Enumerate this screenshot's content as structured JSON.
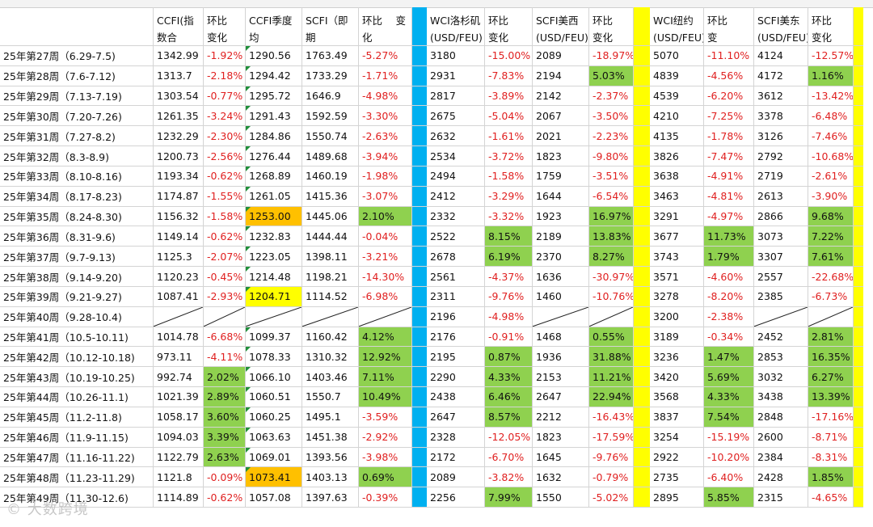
{
  "headers": [
    "",
    "CCFI(指数合\n长协)",
    "环比\n变化",
    "CCFI季度均\n值",
    "SCFI（即期\n指数)",
    "环比　 变\n化",
    "",
    "WCI洛杉矶\n(USD/FEU)",
    "环比\n变化",
    "SCFI美西\n(USD/FEU)",
    "环比\n变化",
    "",
    "WCI纽约\n(USD/FEU)",
    "环比　 变\n化",
    "SCFI美东\n(USD/FEU)",
    "环比\n变化",
    ""
  ],
  "rows": [
    [
      "25年第27周（6.29-7.5)",
      "1342.99",
      "-1.92%",
      "1290.56",
      "1763.49",
      "-5.27%",
      "",
      "3180",
      "-15.00%",
      "2089",
      "-18.97%",
      "",
      "5070",
      "-11.10%",
      "4124",
      "-12.57%",
      ""
    ],
    [
      "25年第28周（7.6-7.12)",
      "1313.7",
      "-2.18%",
      "1294.42",
      "1733.29",
      "-1.71%",
      "",
      "2931",
      "-7.83%",
      "2194",
      "5.03%",
      "",
      "4839",
      "-4.56%",
      "4172",
      "1.16%",
      ""
    ],
    [
      "25年第29周（7.13-7.19)",
      "1303.54",
      "-0.77%",
      "1295.72",
      "1646.9",
      "-4.98%",
      "",
      "2817",
      "-3.89%",
      "2142",
      "-2.37%",
      "",
      "4539",
      "-6.20%",
      "3612",
      "-13.42%",
      ""
    ],
    [
      "25年第30周（7.20-7.26)",
      "1261.35",
      "-3.24%",
      "1291.43",
      "1592.59",
      "-3.30%",
      "",
      "2675",
      "-5.04%",
      "2067",
      "-3.50%",
      "",
      "4210",
      "-7.25%",
      "3378",
      "-6.48%",
      ""
    ],
    [
      "25年第31周（7.27-8.2)",
      "1232.29",
      "-2.30%",
      "1284.86",
      "1550.74",
      "-2.63%",
      "",
      "2632",
      "-1.61%",
      "2021",
      "-2.23%",
      "",
      "4135",
      "-1.78%",
      "3126",
      "-7.46%",
      ""
    ],
    [
      "25年第32周（8.3-8.9)",
      "1200.73",
      "-2.56%",
      "1276.44",
      "1489.68",
      "-3.94%",
      "",
      "2534",
      "-3.72%",
      "1823",
      "-9.80%",
      "",
      "3826",
      "-7.47%",
      "2792",
      "-10.68%",
      ""
    ],
    [
      "25年第33周（8.10-8.16)",
      "1193.34",
      "-0.62%",
      "1268.89",
      "1460.19",
      "-1.98%",
      "",
      "2494",
      "-1.58%",
      "1759",
      "-3.51%",
      "",
      "3638",
      "-4.91%",
      "2719",
      "-2.61%",
      ""
    ],
    [
      "25年第34周（8.17-8.23)",
      "1174.87",
      "-1.55%",
      "1261.05",
      "1415.36",
      "-3.07%",
      "",
      "2412",
      "-3.29%",
      "1644",
      "-6.54%",
      "",
      "3463",
      "-4.81%",
      "2613",
      "-3.90%",
      ""
    ],
    [
      "25年第35周（8.24-8.30)",
      "1156.32",
      "-1.58%",
      "1253.00",
      "1445.06",
      "2.10%",
      "",
      "2332",
      "-3.32%",
      "1923",
      "16.97%",
      "",
      "3291",
      "-4.97%",
      "2866",
      "9.68%",
      ""
    ],
    [
      "25年第36周（8.31-9.6)",
      "1149.14",
      "-0.62%",
      "1232.83",
      "1444.44",
      "-0.04%",
      "",
      "2522",
      "8.15%",
      "2189",
      "13.83%",
      "",
      "3677",
      "11.73%",
      "3073",
      "7.22%",
      ""
    ],
    [
      "25年第37周（9.7-9.13)",
      "1125.3",
      "-2.07%",
      "1223.05",
      "1398.11",
      "-3.21%",
      "",
      "2678",
      "6.19%",
      "2370",
      "8.27%",
      "",
      "3743",
      "1.79%",
      "3307",
      "7.61%",
      ""
    ],
    [
      "25年第38周（9.14-9.20)",
      "1120.23",
      "-0.45%",
      "1214.48",
      "1198.21",
      "-14.30%",
      "",
      "2561",
      "-4.37%",
      "1636",
      "-30.97%",
      "",
      "3571",
      "-4.60%",
      "2557",
      "-22.68%",
      ""
    ],
    [
      "25年第39周（9.21-9.27)",
      "1087.41",
      "-2.93%",
      "1204.71",
      "1114.52",
      "-6.98%",
      "",
      "2311",
      "-9.76%",
      "1460",
      "-10.76%",
      "",
      "3278",
      "-8.20%",
      "2385",
      "-6.73%",
      ""
    ],
    [
      "25年第40周（9.28-10.4)",
      "",
      "",
      "",
      "",
      "",
      "",
      "2196",
      "-4.98%",
      "",
      "",
      "",
      "3200",
      "-2.38%",
      "",
      "",
      ""
    ],
    [
      "25年第41周（10.5-10.11)",
      "1014.78",
      "-6.68%",
      "1099.37",
      "1160.42",
      "4.12%",
      "",
      "2176",
      "-0.91%",
      "1468",
      "0.55%",
      "",
      "3189",
      "-0.34%",
      "2452",
      "2.81%",
      ""
    ],
    [
      "25年第42周（10.12-10.18)",
      "973.11",
      "-4.11%",
      "1078.33",
      "1310.32",
      "12.92%",
      "",
      "2195",
      "0.87%",
      "1936",
      "31.88%",
      "",
      "3236",
      "1.47%",
      "2853",
      "16.35%",
      ""
    ],
    [
      "25年第43周（10.19-10.25)",
      "992.74",
      "2.02%",
      "1066.10",
      "1403.46",
      "7.11%",
      "",
      "2290",
      "4.33%",
      "2153",
      "11.21%",
      "",
      "3420",
      "5.69%",
      "3032",
      "6.27%",
      ""
    ],
    [
      "25年第44周（10.26-11.1)",
      "1021.39",
      "2.89%",
      "1060.51",
      "1550.7",
      "10.49%",
      "",
      "2438",
      "6.46%",
      "2647",
      "22.94%",
      "",
      "3568",
      "4.33%",
      "3438",
      "13.39%",
      ""
    ],
    [
      "25年第45周（11.2-11.8)",
      "1058.17",
      "3.60%",
      "1060.25",
      "1495.1",
      "-3.59%",
      "",
      "2647",
      "8.57%",
      "2212",
      "-16.43%",
      "",
      "3837",
      "7.54%",
      "2848",
      "-17.16%",
      ""
    ],
    [
      "25年第46周（11.9-11.15)",
      "1094.03",
      "3.39%",
      "1063.63",
      "1451.38",
      "-2.92%",
      "",
      "2328",
      "-12.05%",
      "1823",
      "-17.59%",
      "",
      "3254",
      "-15.19%",
      "2600",
      "-8.71%",
      ""
    ],
    [
      "25年第47周（11.16-11.22)",
      "1122.79",
      "2.63%",
      "1069.01",
      "1393.56",
      "-3.98%",
      "",
      "2172",
      "-6.70%",
      "1645",
      "-9.76%",
      "",
      "2922",
      "-10.20%",
      "2384",
      "-8.31%",
      ""
    ],
    [
      "25年第48周（11.23-11.29)",
      "1121.8",
      "-0.09%",
      "1073.41",
      "1403.13",
      "0.69%",
      "",
      "2089",
      "-3.82%",
      "1632",
      "-0.79%",
      "",
      "2735",
      "-6.40%",
      "2428",
      "1.85%",
      ""
    ],
    [
      "25年第49周（11.30-12.6)",
      "1114.89",
      "-0.62%",
      "1057.08",
      "1397.63",
      "-0.39%",
      "",
      "2256",
      "7.99%",
      "1550",
      "-5.02%",
      "",
      "2895",
      "5.85%",
      "2315",
      "-4.65%",
      ""
    ]
  ],
  "fills": {
    "8": {
      "3": "o",
      "5": "g",
      "10": "g",
      "15": "g"
    },
    "1": {
      "10": "g",
      "15": "g"
    },
    "9": {
      "8": "g",
      "10": "g",
      "13": "g",
      "15": "g"
    },
    "10": {
      "8": "g",
      "10": "g",
      "13": "g",
      "15": "g"
    },
    "12": {
      "3": "y"
    },
    "14": {
      "5": "g",
      "10": "g",
      "15": "g"
    },
    "15": {
      "5": "g",
      "8": "g",
      "10": "g",
      "13": "g",
      "15": "g"
    },
    "16": {
      "2": "g",
      "5": "g",
      "8": "g",
      "10": "g",
      "13": "g",
      "15": "g"
    },
    "17": {
      "2": "g",
      "5": "g",
      "8": "g",
      "10": "g",
      "13": "g",
      "15": "g"
    },
    "18": {
      "2": "g",
      "8": "g",
      "13": "g"
    },
    "19": {
      "2": "g"
    },
    "20": {
      "2": "g"
    },
    "21": {
      "3": "o",
      "5": "g",
      "15": "g"
    },
    "22": {
      "8": "g",
      "13": "g"
    }
  },
  "colors": {
    "negative_text": "#e02020",
    "green_fill": "#8fd14f",
    "orange_fill": "#ffc000",
    "yellow_fill": "#ffff00",
    "blue_separator": "#00b0f0",
    "yellow_separator": "#ffff00"
  },
  "watermark": "© 大数跨境"
}
